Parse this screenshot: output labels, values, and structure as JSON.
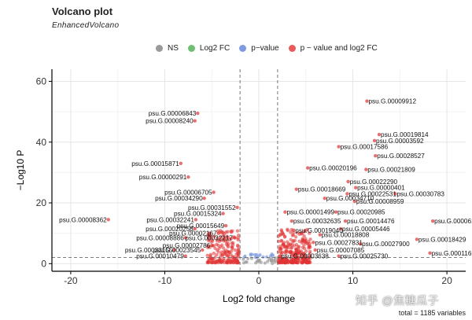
{
  "chart_data": {
    "type": "scatter",
    "title": "Volcano plot",
    "subtitle": "EnhancedVolcano",
    "xlabel": "Log2 fold change",
    "ylabel": "−Log10 P",
    "xlim": [
      -22,
      22
    ],
    "ylim": [
      -2.5,
      64
    ],
    "xticks": [
      -20,
      -10,
      0,
      10,
      20
    ],
    "yticks": [
      0,
      20,
      40,
      60
    ],
    "fc_cutoff": 2,
    "p_cutoff_log10": 2,
    "grid": true,
    "legend_position": "top",
    "legend": [
      {
        "label": "NS",
        "color": "#9a9a9a"
      },
      {
        "label": "Log2 FC",
        "color": "#6fbf73"
      },
      {
        "label": "p−value",
        "color": "#7f9be0"
      },
      {
        "label": "p − value and log2 FC",
        "color": "#ea5a5a"
      }
    ],
    "caption": "total = 1185 variables",
    "labeled_points": [
      {
        "label": "psu.G.00009912",
        "x": 11.5,
        "y": 53.5
      },
      {
        "label": "psu.G.00006843",
        "x": -6.5,
        "y": 49.5
      },
      {
        "label": "psu.G.00008240",
        "x": -6.8,
        "y": 47.0
      },
      {
        "label": "psu.G.00019814",
        "x": 12.8,
        "y": 42.5
      },
      {
        "label": "psu.G.00003592",
        "x": 12.3,
        "y": 40.5
      },
      {
        "label": "psu.G.00017586",
        "x": 8.5,
        "y": 38.5
      },
      {
        "label": "psu.G.00028527",
        "x": 12.4,
        "y": 35.5
      },
      {
        "label": "psu.G.00015871",
        "x": -8.3,
        "y": 33.0
      },
      {
        "label": "psu.G.00020196",
        "x": 5.2,
        "y": 31.5
      },
      {
        "label": "psu.G.00021809",
        "x": 11.4,
        "y": 31.0
      },
      {
        "label": "psu.G.00000291",
        "x": -7.5,
        "y": 28.5
      },
      {
        "label": "psu.G.00022290",
        "x": 9.5,
        "y": 27.0
      },
      {
        "label": "psu.G.00000401",
        "x": 10.3,
        "y": 25.0
      },
      {
        "label": "psu.G.00018669",
        "x": 4.0,
        "y": 24.5
      },
      {
        "label": "psu.G.00006705",
        "x": -4.8,
        "y": 23.5
      },
      {
        "label": "psu.G.00022531",
        "x": 9.4,
        "y": 23.0
      },
      {
        "label": "psu.G.00030783",
        "x": 14.5,
        "y": 23.0
      },
      {
        "label": "psu.G.00034290",
        "x": -5.8,
        "y": 21.5
      },
      {
        "label": "psu.G.00034710",
        "x": 7.0,
        "y": 21.5
      },
      {
        "label": "psu.G.00008959",
        "x": 10.2,
        "y": 20.5
      },
      {
        "label": "psu.G.00031552",
        "x": -2.3,
        "y": 18.5
      },
      {
        "label": "psu.G.00015324",
        "x": -3.8,
        "y": 16.5
      },
      {
        "label": "psu.G.00001499",
        "x": 2.8,
        "y": 17.0
      },
      {
        "label": "psu.G.00020985",
        "x": 8.2,
        "y": 17.0
      },
      {
        "label": "psu.G.00008362",
        "x": -16.0,
        "y": 14.5
      },
      {
        "label": "psu.G.00032241",
        "x": -6.7,
        "y": 14.5
      },
      {
        "label": "psu.G.00032635",
        "x": 3.5,
        "y": 14.0
      },
      {
        "label": "psu.G.00014476",
        "x": 9.2,
        "y": 14.0
      },
      {
        "label": "psu.G.00006149",
        "x": 18.5,
        "y": 14.0
      },
      {
        "label": "psu.G.00015649",
        "x": -3.5,
        "y": 12.5
      },
      {
        "label": "psu.G.00020256",
        "x": -6.8,
        "y": 11.5
      },
      {
        "label": "psu.G.00005446",
        "x": 8.7,
        "y": 11.5
      },
      {
        "label": "psu.G.00019040",
        "x": 3.7,
        "y": 11.0
      },
      {
        "label": "psu.G.00002167",
        "x": -4.3,
        "y": 10.0
      },
      {
        "label": "psu.G.00018808",
        "x": 6.5,
        "y": 9.5
      },
      {
        "label": "psu.G.00008886",
        "x": -7.8,
        "y": 8.5
      },
      {
        "label": "psu.G.00032217",
        "x": -2.6,
        "y": 8.5
      },
      {
        "label": "psu.G.00018429",
        "x": 16.8,
        "y": 8.0
      },
      {
        "label": "psu.G.00002786",
        "x": -5.0,
        "y": 6.0
      },
      {
        "label": "psu.G.00027831",
        "x": 5.8,
        "y": 7.0
      },
      {
        "label": "psu.G.00027900",
        "x": 10.8,
        "y": 6.5
      },
      {
        "label": "psu.G.00033155",
        "x": -9.0,
        "y": 4.5
      },
      {
        "label": "psu.G.00023545",
        "x": -6.0,
        "y": 4.5
      },
      {
        "label": "psu.G.00007085",
        "x": 6.0,
        "y": 4.5
      },
      {
        "label": "psu.G.00011654",
        "x": 18.2,
        "y": 3.5
      },
      {
        "label": "psu.G.00010479",
        "x": -7.8,
        "y": 2.5
      },
      {
        "label": "psu.G.00003638",
        "x": 2.2,
        "y": 2.5
      },
      {
        "label": "psu.G.00025730",
        "x": 8.5,
        "y": 2.5
      }
    ]
  },
  "watermark": "知乎 @焦糖瓜子"
}
